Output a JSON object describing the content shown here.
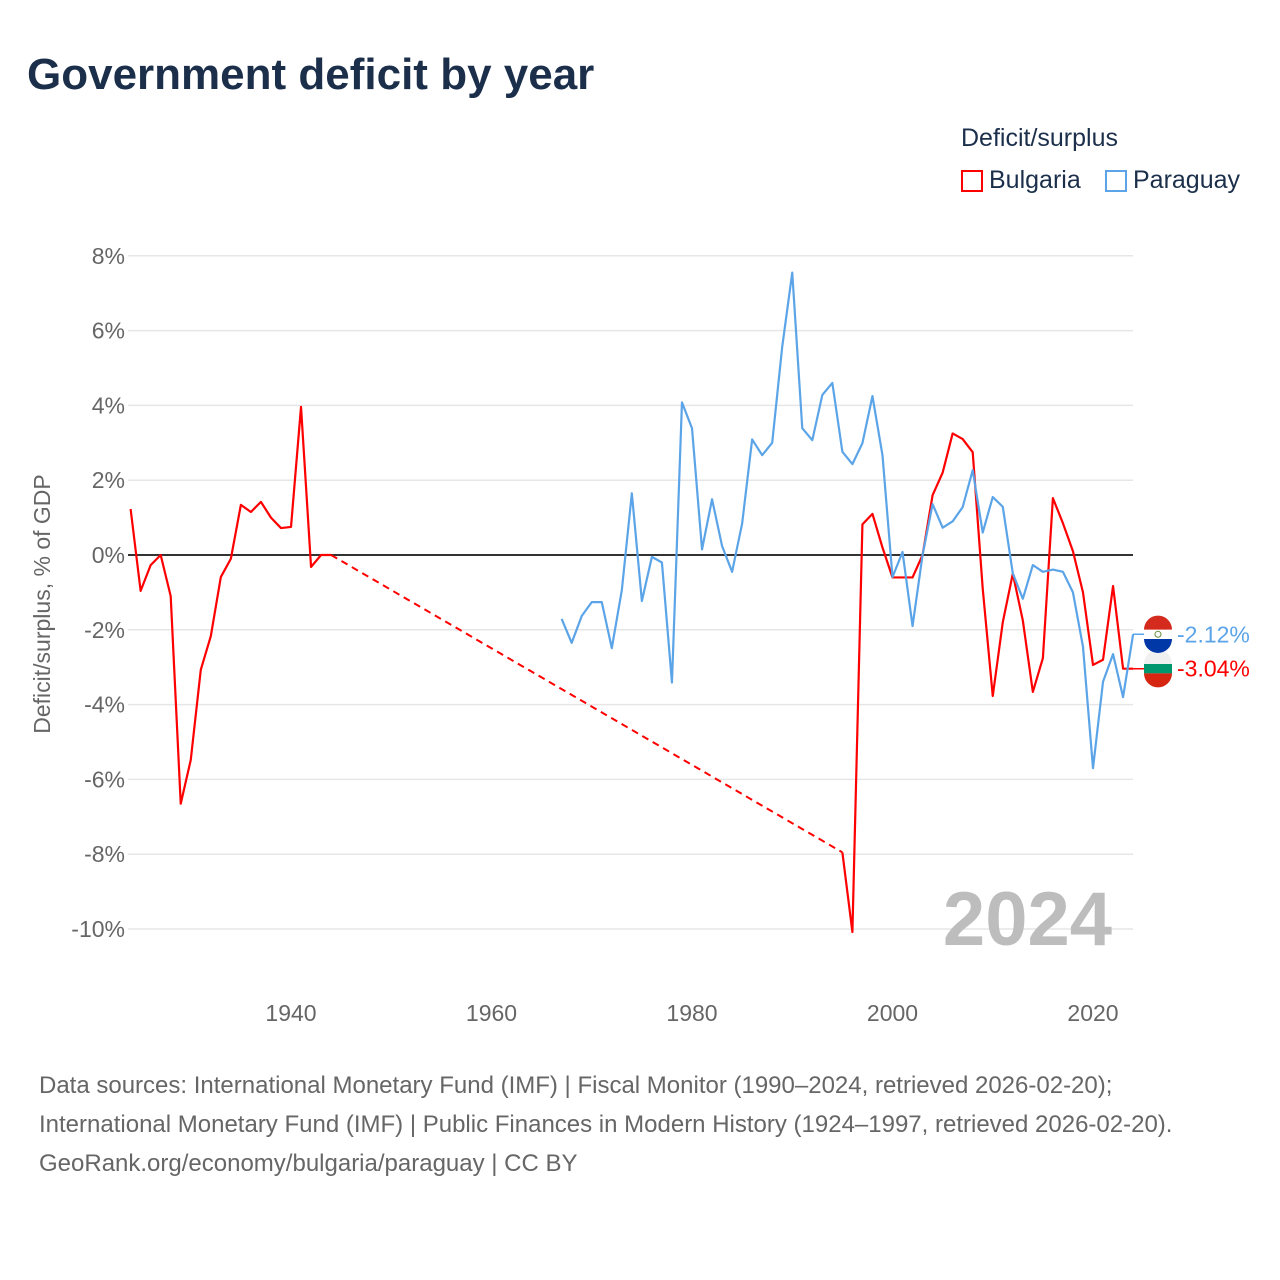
{
  "title": "Government deficit by year",
  "legend": {
    "title": "Deficit/surplus",
    "items": [
      {
        "name": "Bulgaria",
        "color": "#ff0000"
      },
      {
        "name": "Paraguay",
        "color": "#5ba4e8"
      }
    ]
  },
  "watermark_year": "2024",
  "footer": {
    "sources": "Data sources: International Monetary Fund (IMF) | Fiscal Monitor (1990–2024, retrieved 2026-02-20); International Monetary Fund (IMF) | Public Finances in Modern History (1924–1997, retrieved 2026-02-20).",
    "credit": "GeoRank.org/economy/bulgaria/paraguay | CC BY"
  },
  "chart_data": {
    "type": "line",
    "title": "Government deficit by year",
    "xlabel": "",
    "ylabel": "Deficit/surplus, % of GDP",
    "xlim": [
      1924,
      2024
    ],
    "ylim": [
      -11,
      8.5
    ],
    "xticks": [
      1940,
      1960,
      1980,
      2000,
      2020
    ],
    "yticks": [
      -10,
      -8,
      -6,
      -4,
      -2,
      0,
      2,
      4,
      6,
      8
    ],
    "ytick_labels": [
      "-10%",
      "-8%",
      "-6%",
      "-4%",
      "-2%",
      "0%",
      "2%",
      "4%",
      "6%",
      "8%"
    ],
    "legend_placement": "top-right",
    "grid": true,
    "series": [
      {
        "name": "Bulgaria",
        "color": "#ff0000",
        "end_label": "-3.04%",
        "gap": [
          1944,
          1995
        ],
        "x": [
          1924,
          1925,
          1926,
          1927,
          1928,
          1929,
          1930,
          1931,
          1932,
          1933,
          1934,
          1935,
          1936,
          1937,
          1938,
          1939,
          1940,
          1941,
          1942,
          1943,
          1944,
          1995,
          1996,
          1997,
          1998,
          1999,
          2000,
          2001,
          2002,
          2003,
          2004,
          2005,
          2006,
          2007,
          2008,
          2009,
          2010,
          2011,
          2012,
          2013,
          2014,
          2015,
          2016,
          2017,
          2018,
          2019,
          2020,
          2021,
          2022,
          2023,
          2024
        ],
        "y": [
          1.23,
          -0.96,
          -0.27,
          0,
          -1.1,
          -6.65,
          -5.48,
          -3.07,
          -2.17,
          -0.59,
          -0.1,
          1.34,
          1.15,
          1.42,
          1.0,
          0.72,
          0.75,
          3.96,
          -0.32,
          0,
          0,
          -7.95,
          -10.08,
          0.82,
          1.1,
          0.2,
          -0.6,
          -0.6,
          -0.6,
          0,
          1.6,
          2.2,
          3.25,
          3.1,
          2.75,
          -0.9,
          -3.77,
          -1.8,
          -0.5,
          -1.75,
          -3.66,
          -2.76,
          1.52,
          0.85,
          0.1,
          -1.0,
          -2.94,
          -2.8,
          -0.83,
          -3.04,
          -3.04
        ]
      },
      {
        "name": "Paraguay",
        "color": "#5ba4e8",
        "end_label": "-2.12%",
        "x": [
          1967,
          1968,
          1969,
          1970,
          1971,
          1972,
          1973,
          1974,
          1975,
          1976,
          1977,
          1978,
          1979,
          1980,
          1981,
          1982,
          1983,
          1984,
          1985,
          1986,
          1987,
          1988,
          1989,
          1990,
          1991,
          1992,
          1993,
          1994,
          1995,
          1996,
          1997,
          1998,
          1999,
          2000,
          2001,
          2002,
          2003,
          2004,
          2005,
          2006,
          2007,
          2008,
          2009,
          2010,
          2011,
          2012,
          2013,
          2014,
          2015,
          2016,
          2017,
          2018,
          2019,
          2020,
          2021,
          2022,
          2023,
          2024
        ],
        "y": [
          -1.71,
          -2.35,
          -1.63,
          -1.26,
          -1.26,
          -2.49,
          -0.94,
          1.65,
          -1.23,
          -0.05,
          -0.2,
          -3.41,
          4.08,
          3.39,
          0.15,
          1.49,
          0.24,
          -0.45,
          0.84,
          3.09,
          2.67,
          3.0,
          5.57,
          7.55,
          3.39,
          3.07,
          4.28,
          4.6,
          2.76,
          2.43,
          2.99,
          4.25,
          2.67,
          -0.59,
          0.08,
          -1.9,
          0,
          1.36,
          0.73,
          0.9,
          1.28,
          2.27,
          0.6,
          1.55,
          1.29,
          -0.49,
          -1.17,
          -0.27,
          -0.45,
          -0.39,
          -0.45,
          -1.0,
          -2.45,
          -5.7,
          -3.39,
          -2.65,
          -3.8,
          -2.12
        ]
      }
    ]
  }
}
